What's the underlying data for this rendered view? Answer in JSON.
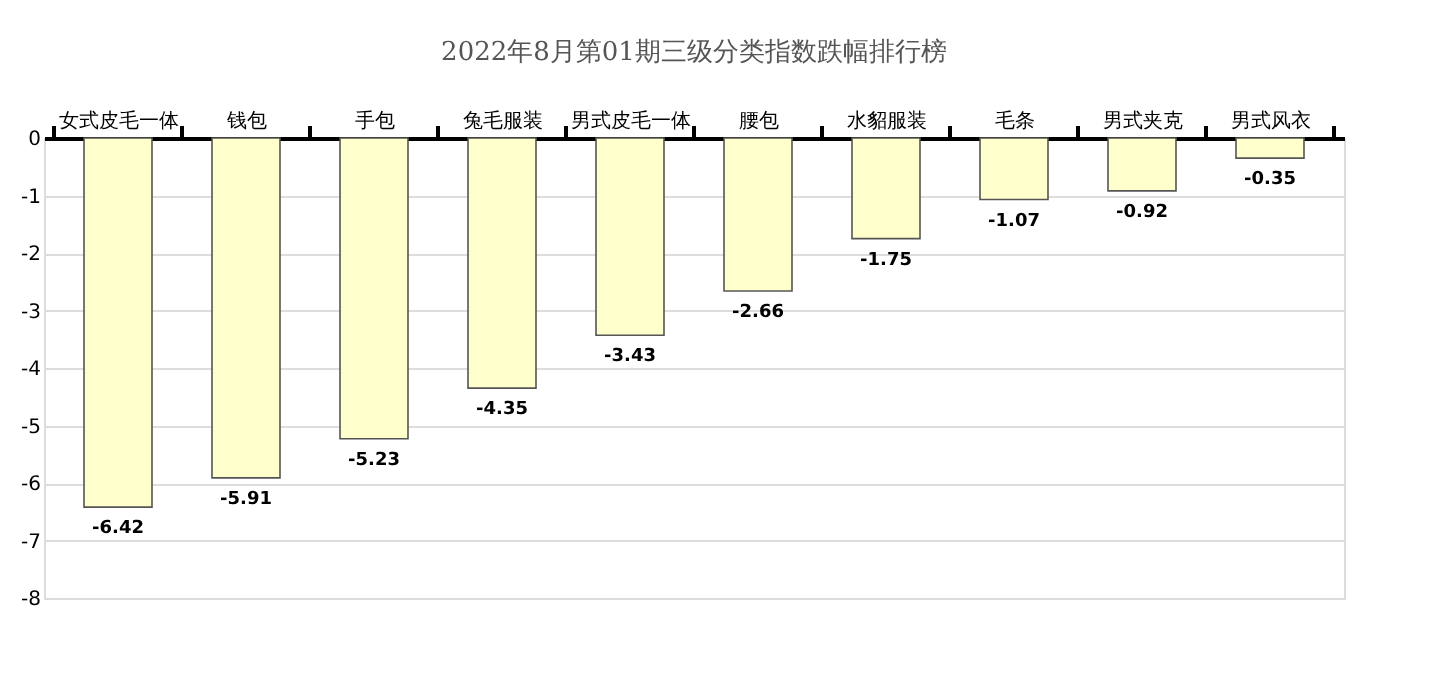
{
  "chart_data": {
    "type": "bar",
    "title": "2022年8月第01期三级分类指数跌幅排行榜",
    "categories": [
      "女式皮毛一体",
      "钱包",
      "手包",
      "兔毛服装",
      "男式皮毛一体",
      "腰包",
      "水貂服装",
      "毛条",
      "男式夹克",
      "男式风衣"
    ],
    "values": [
      -6.42,
      -5.91,
      -5.23,
      -4.35,
      -3.43,
      -2.66,
      -1.75,
      -1.07,
      -0.92,
      -0.35
    ],
    "color": "#ffffcc",
    "ylim": [
      -8,
      0
    ],
    "yticks": [
      -8,
      -7,
      -6,
      -5,
      -4,
      -3,
      -2,
      -1,
      0
    ],
    "grid": "y",
    "data_labels": true
  }
}
